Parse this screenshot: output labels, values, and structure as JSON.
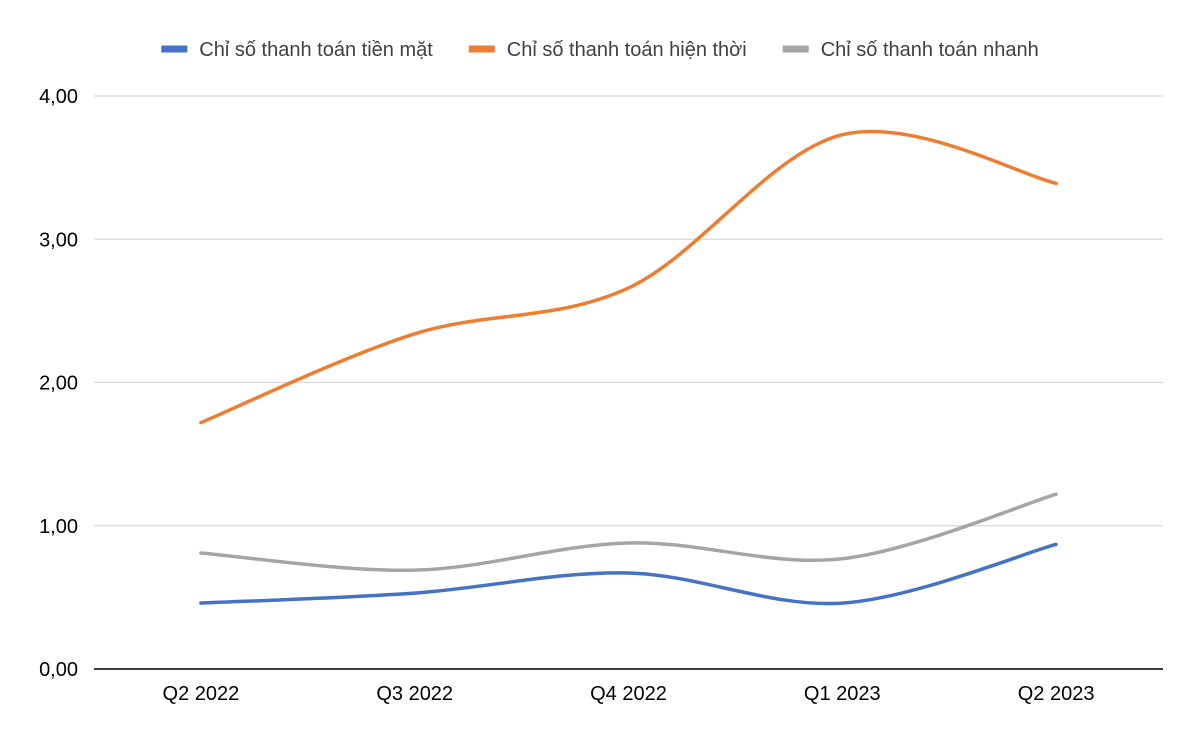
{
  "chart_data": {
    "type": "line",
    "smooth": true,
    "categories": [
      "Q2 2022",
      "Q3 2022",
      "Q4 2022",
      "Q1 2023",
      "Q2 2023"
    ],
    "series": [
      {
        "name": "Chỉ số thanh toán tiền mặt",
        "color": "#4472c4",
        "values": [
          0.46,
          0.53,
          0.67,
          0.46,
          0.87
        ]
      },
      {
        "name": "Chỉ số thanh toán hiện thời",
        "color": "#ed7d31",
        "values": [
          1.72,
          2.34,
          2.66,
          3.73,
          3.39
        ]
      },
      {
        "name": "Chỉ số thanh toán nhanh",
        "color": "#a5a5a5",
        "values": [
          0.81,
          0.69,
          0.88,
          0.77,
          1.22
        ]
      }
    ],
    "ylim": [
      0,
      4
    ],
    "yticks": [
      "0,00",
      "1,00",
      "2,00",
      "3,00",
      "4,00"
    ],
    "ytick_values": [
      0,
      1,
      2,
      3,
      4
    ],
    "grid": true,
    "legend_position": "top"
  }
}
